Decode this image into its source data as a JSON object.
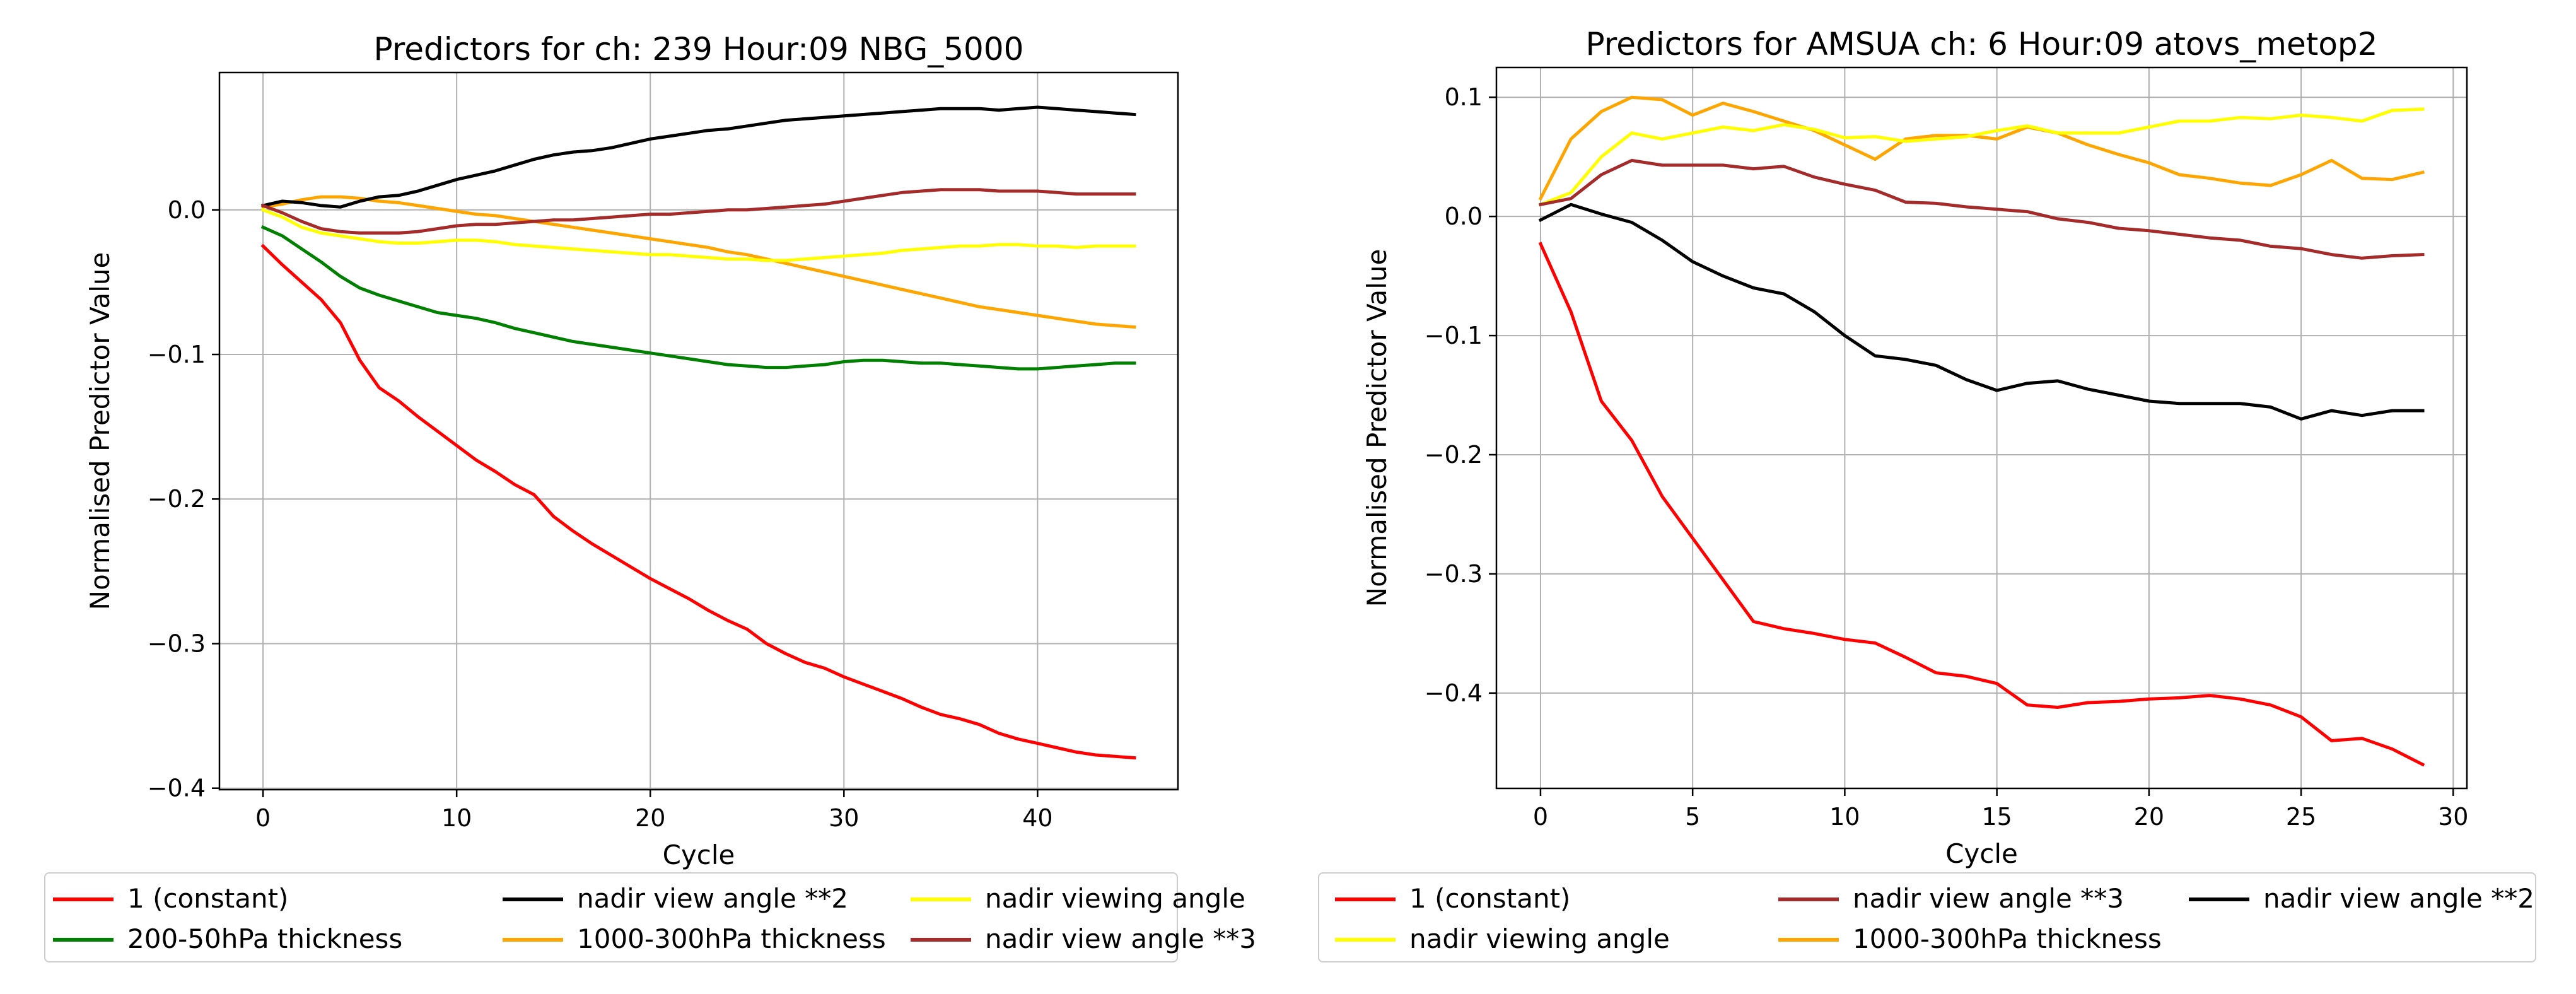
{
  "chart_data": [
    {
      "type": "line",
      "title": "Predictors for ch: 239 Hour:09 NBG_5000",
      "xlabel": "Cycle",
      "ylabel": "Normalised Predictor Value",
      "xlim": [
        -2.25,
        47.25
      ],
      "ylim": [
        -0.401,
        0.095
      ],
      "xticks": [
        0,
        10,
        20,
        30,
        40
      ],
      "yticks": [
        -0.4,
        -0.3,
        -0.2,
        -0.1,
        0.0
      ],
      "xtick_labels": [
        "0",
        "10",
        "20",
        "30",
        "40"
      ],
      "ytick_labels": [
        "−0.4",
        "−0.3",
        "−0.2",
        "−0.1",
        "0.0"
      ],
      "grid": true,
      "legend_position": "below",
      "series": [
        {
          "name": "1 (constant)",
          "color": "#ff0000",
          "values": [
            -0.025,
            -0.038,
            -0.05,
            -0.062,
            -0.078,
            -0.104,
            -0.123,
            -0.132,
            -0.143,
            -0.153,
            -0.163,
            -0.173,
            -0.181,
            -0.19,
            -0.197,
            -0.212,
            -0.222,
            -0.231,
            -0.239,
            -0.247,
            -0.255,
            -0.262,
            -0.269,
            -0.277,
            -0.284,
            -0.29,
            -0.3,
            -0.307,
            -0.313,
            -0.317,
            -0.323,
            -0.328,
            -0.333,
            -0.338,
            -0.344,
            -0.349,
            -0.352,
            -0.356,
            -0.362,
            -0.366,
            -0.369,
            -0.372,
            -0.375,
            -0.377,
            -0.378,
            -0.379
          ]
        },
        {
          "name": "1000-300hPa thickness",
          "color": "#ffa500",
          "values": [
            0.002,
            0.004,
            0.007,
            0.009,
            0.009,
            0.008,
            0.006,
            0.005,
            0.003,
            0.001,
            -0.001,
            -0.003,
            -0.004,
            -0.006,
            -0.008,
            -0.01,
            -0.012,
            -0.014,
            -0.016,
            -0.018,
            -0.02,
            -0.022,
            -0.024,
            -0.026,
            -0.029,
            -0.031,
            -0.034,
            -0.037,
            -0.04,
            -0.043,
            -0.046,
            -0.049,
            -0.052,
            -0.055,
            -0.058,
            -0.061,
            -0.064,
            -0.067,
            -0.069,
            -0.071,
            -0.073,
            -0.075,
            -0.077,
            -0.079,
            -0.08,
            -0.081
          ]
        },
        {
          "name": "200-50hPa thickness",
          "color": "#008000",
          "values": [
            -0.012,
            -0.018,
            -0.027,
            -0.036,
            -0.046,
            -0.054,
            -0.059,
            -0.063,
            -0.067,
            -0.071,
            -0.073,
            -0.075,
            -0.078,
            -0.082,
            -0.085,
            -0.088,
            -0.091,
            -0.093,
            -0.095,
            -0.097,
            -0.099,
            -0.101,
            -0.103,
            -0.105,
            -0.107,
            -0.108,
            -0.109,
            -0.109,
            -0.108,
            -0.107,
            -0.105,
            -0.104,
            -0.104,
            -0.105,
            -0.106,
            -0.106,
            -0.107,
            -0.108,
            -0.109,
            -0.11,
            -0.11,
            -0.109,
            -0.108,
            -0.107,
            -0.106,
            -0.106
          ]
        },
        {
          "name": "nadir viewing angle",
          "color": "#ffff00",
          "values": [
            0.0,
            -0.005,
            -0.012,
            -0.016,
            -0.018,
            -0.02,
            -0.022,
            -0.023,
            -0.023,
            -0.022,
            -0.021,
            -0.021,
            -0.022,
            -0.024,
            -0.025,
            -0.026,
            -0.027,
            -0.028,
            -0.029,
            -0.03,
            -0.031,
            -0.031,
            -0.032,
            -0.033,
            -0.034,
            -0.034,
            -0.035,
            -0.035,
            -0.034,
            -0.033,
            -0.032,
            -0.031,
            -0.03,
            -0.028,
            -0.027,
            -0.026,
            -0.025,
            -0.025,
            -0.024,
            -0.024,
            -0.025,
            -0.025,
            -0.026,
            -0.025,
            -0.025,
            -0.025
          ]
        },
        {
          "name": "nadir view angle **2",
          "color": "#000000",
          "values": [
            0.003,
            0.006,
            0.005,
            0.003,
            0.002,
            0.006,
            0.009,
            0.01,
            0.013,
            0.017,
            0.021,
            0.024,
            0.027,
            0.031,
            0.035,
            0.038,
            0.04,
            0.041,
            0.043,
            0.046,
            0.049,
            0.051,
            0.053,
            0.055,
            0.056,
            0.058,
            0.06,
            0.062,
            0.063,
            0.064,
            0.065,
            0.066,
            0.067,
            0.068,
            0.069,
            0.07,
            0.07,
            0.07,
            0.069,
            0.07,
            0.071,
            0.07,
            0.069,
            0.068,
            0.067,
            0.066
          ]
        },
        {
          "name": "nadir view angle **3",
          "color": "#a52a2a",
          "values": [
            0.003,
            -0.002,
            -0.008,
            -0.013,
            -0.015,
            -0.016,
            -0.016,
            -0.016,
            -0.015,
            -0.013,
            -0.011,
            -0.01,
            -0.01,
            -0.009,
            -0.008,
            -0.007,
            -0.007,
            -0.006,
            -0.005,
            -0.004,
            -0.003,
            -0.003,
            -0.002,
            -0.001,
            0.0,
            0.0,
            0.001,
            0.002,
            0.003,
            0.004,
            0.006,
            0.008,
            0.01,
            0.012,
            0.013,
            0.014,
            0.014,
            0.014,
            0.013,
            0.013,
            0.013,
            0.012,
            0.011,
            0.011,
            0.011,
            0.011
          ]
        }
      ],
      "legend": [
        "1 (constant)",
        "200-50hPa thickness",
        "nadir view angle **2",
        "1000-300hPa thickness",
        "nadir viewing angle",
        "nadir view angle **3"
      ]
    },
    {
      "type": "line",
      "title": "Predictors for AMSUA ch: 6 Hour:09 atovs_metop2",
      "xlabel": "Cycle",
      "ylabel": "Normalised Predictor Value",
      "xlim": [
        -1.45,
        30.45
      ],
      "ylim": [
        -0.48,
        0.125
      ],
      "xticks": [
        0,
        5,
        10,
        15,
        20,
        25,
        30
      ],
      "yticks": [
        -0.4,
        -0.3,
        -0.2,
        -0.1,
        0.0,
        0.1
      ],
      "xtick_labels": [
        "0",
        "5",
        "10",
        "15",
        "20",
        "25",
        "30"
      ],
      "ytick_labels": [
        "−0.4",
        "−0.3",
        "−0.2",
        "−0.1",
        "0.0",
        "0.1"
      ],
      "grid": true,
      "legend_position": "below",
      "series": [
        {
          "name": "1 (constant)",
          "color": "#ff0000",
          "values": [
            -0.023,
            -0.08,
            -0.155,
            -0.188,
            -0.235,
            -0.27,
            -0.305,
            -0.34,
            -0.346,
            -0.35,
            -0.355,
            -0.358,
            -0.37,
            -0.383,
            -0.386,
            -0.392,
            -0.41,
            -0.412,
            -0.408,
            -0.407,
            -0.405,
            -0.404,
            -0.402,
            -0.405,
            -0.41,
            -0.42,
            -0.44,
            -0.438,
            -0.447,
            -0.46
          ]
        },
        {
          "name": "1000-300hPa thickness",
          "color": "#ffa500",
          "values": [
            0.015,
            0.065,
            0.088,
            0.1,
            0.098,
            0.085,
            0.095,
            0.088,
            0.08,
            0.072,
            0.06,
            0.048,
            0.065,
            0.068,
            0.068,
            0.065,
            0.075,
            0.07,
            0.06,
            0.052,
            0.045,
            0.035,
            0.032,
            0.028,
            0.026,
            0.035,
            0.047,
            0.032,
            0.031,
            0.037
          ]
        },
        {
          "name": "nadir viewing angle",
          "color": "#ffff00",
          "values": [
            0.01,
            0.02,
            0.05,
            0.07,
            0.065,
            0.07,
            0.075,
            0.072,
            0.077,
            0.073,
            0.066,
            0.067,
            0.063,
            0.065,
            0.067,
            0.072,
            0.076,
            0.07,
            0.07,
            0.07,
            0.075,
            0.08,
            0.08,
            0.083,
            0.082,
            0.085,
            0.083,
            0.08,
            0.089,
            0.09
          ]
        },
        {
          "name": "nadir view angle **2",
          "color": "#000000",
          "values": [
            -0.003,
            0.01,
            0.002,
            -0.005,
            -0.02,
            -0.038,
            -0.05,
            -0.06,
            -0.065,
            -0.08,
            -0.1,
            -0.117,
            -0.12,
            -0.125,
            -0.137,
            -0.146,
            -0.14,
            -0.138,
            -0.145,
            -0.15,
            -0.155,
            -0.157,
            -0.157,
            -0.157,
            -0.16,
            -0.17,
            -0.163,
            -0.167,
            -0.163,
            -0.163
          ]
        },
        {
          "name": "nadir view angle **3",
          "color": "#a52a2a",
          "values": [
            0.01,
            0.015,
            0.035,
            0.047,
            0.043,
            0.043,
            0.043,
            0.04,
            0.042,
            0.033,
            0.027,
            0.022,
            0.012,
            0.011,
            0.008,
            0.006,
            0.004,
            -0.002,
            -0.005,
            -0.01,
            -0.012,
            -0.015,
            -0.018,
            -0.02,
            -0.025,
            -0.027,
            -0.032,
            -0.035,
            -0.033,
            -0.032
          ]
        }
      ],
      "legend": [
        "1 (constant)",
        "nadir viewing angle",
        "nadir view angle **3",
        "1000-300hPa thickness",
        "nadir view angle **2"
      ]
    }
  ]
}
